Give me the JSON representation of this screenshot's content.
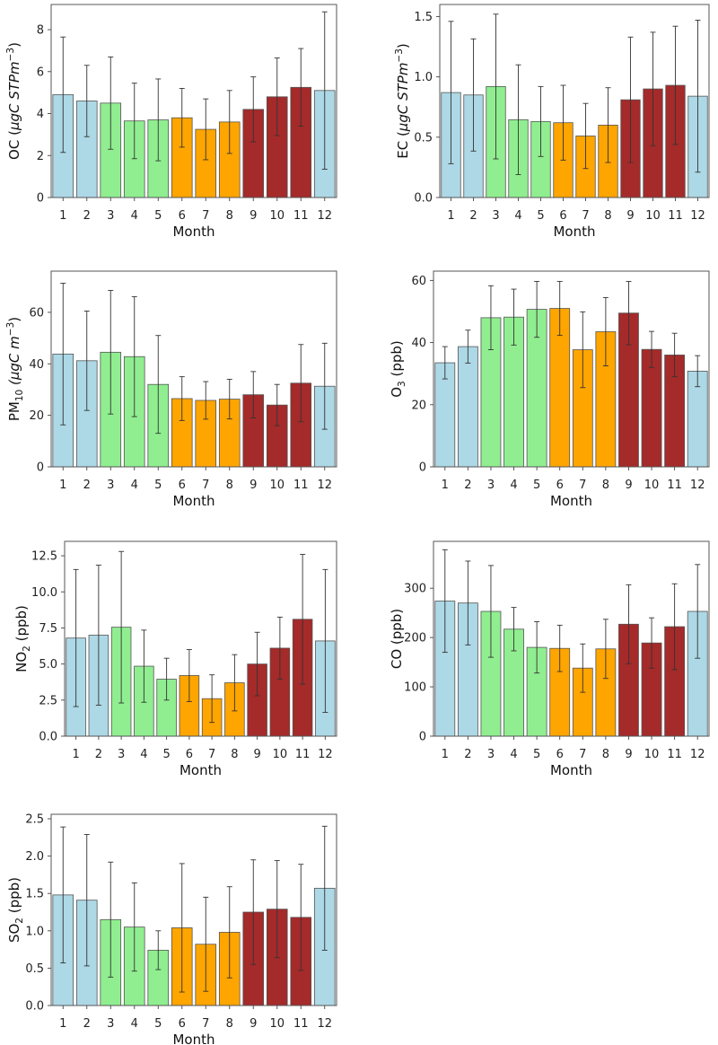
{
  "colors": {
    "winter": "#add8e6",
    "spring": "#90ee90",
    "summer": "#ffa500",
    "autumn": "#a52a2a"
  },
  "chart_data": [
    {
      "type": "bar",
      "title": "",
      "xlabel": "Month",
      "ylabel_main": "OC (",
      "ylabel_sub": "",
      "ylabel_rest": "μgC STPm",
      "ylabel_sup": "−3",
      "ylabel_end": ")",
      "ylabel_text": "OC (μgC STPm−3)",
      "categories": [
        "1",
        "2",
        "3",
        "4",
        "5",
        "6",
        "7",
        "8",
        "9",
        "10",
        "11",
        "12"
      ],
      "seasons": [
        "winter",
        "winter",
        "spring",
        "spring",
        "spring",
        "summer",
        "summer",
        "summer",
        "autumn",
        "autumn",
        "autumn",
        "winter"
      ],
      "values": [
        4.9,
        4.6,
        4.5,
        3.65,
        3.7,
        3.8,
        3.25,
        3.6,
        4.2,
        4.8,
        5.25,
        5.1
      ],
      "errors": [
        2.75,
        1.7,
        2.2,
        1.8,
        1.95,
        1.4,
        1.45,
        1.5,
        1.55,
        1.85,
        1.85,
        3.75
      ],
      "ylim": [
        0,
        9.2
      ],
      "yticks": [
        0,
        2,
        4,
        6,
        8
      ],
      "ytick_labels": [
        "0",
        "2",
        "4",
        "6",
        "8"
      ]
    },
    {
      "type": "bar",
      "title": "",
      "xlabel": "Month",
      "ylabel_main": "EC (",
      "ylabel_sub": "",
      "ylabel_rest": "μgC STPm",
      "ylabel_sup": "−3",
      "ylabel_end": ")",
      "ylabel_text": "EC (μgC STPm−3)",
      "categories": [
        "1",
        "2",
        "3",
        "4",
        "5",
        "6",
        "7",
        "8",
        "9",
        "10",
        "11",
        "12"
      ],
      "seasons": [
        "winter",
        "winter",
        "spring",
        "spring",
        "spring",
        "summer",
        "summer",
        "summer",
        "autumn",
        "autumn",
        "autumn",
        "winter"
      ],
      "values": [
        0.87,
        0.85,
        0.92,
        0.645,
        0.63,
        0.62,
        0.51,
        0.6,
        0.81,
        0.9,
        0.93,
        0.84
      ],
      "errors": [
        0.59,
        0.465,
        0.6,
        0.455,
        0.29,
        0.31,
        0.27,
        0.31,
        0.52,
        0.47,
        0.49,
        0.63
      ],
      "ylim": [
        0,
        1.6
      ],
      "yticks": [
        0,
        0.5,
        1.0,
        1.5
      ],
      "ytick_labels": [
        "0.0",
        "0.5",
        "1.0",
        "1.5"
      ]
    },
    {
      "type": "bar",
      "title": "",
      "xlabel": "Month",
      "ylabel_main": "PM",
      "ylabel_sub": "10",
      "ylabel_rest": " (μgC m",
      "ylabel_sup": "−3",
      "ylabel_end": ")",
      "ylabel_text": "PM10 (μgC m−3)",
      "categories": [
        "1",
        "2",
        "3",
        "4",
        "5",
        "6",
        "7",
        "8",
        "9",
        "10",
        "11",
        "12"
      ],
      "seasons": [
        "winter",
        "winter",
        "spring",
        "spring",
        "spring",
        "summer",
        "summer",
        "summer",
        "autumn",
        "autumn",
        "autumn",
        "winter"
      ],
      "values": [
        43.8,
        41.2,
        44.5,
        42.8,
        32.0,
        26.5,
        25.8,
        26.3,
        28.0,
        24.0,
        32.5,
        31.3
      ],
      "errors": [
        27.5,
        19.3,
        24.0,
        23.3,
        19.0,
        8.5,
        7.3,
        7.7,
        9.0,
        8.0,
        15.0,
        16.7
      ],
      "ylim": [
        0,
        76
      ],
      "yticks": [
        0,
        20,
        40,
        60
      ],
      "ytick_labels": [
        "0",
        "20",
        "40",
        "60"
      ]
    },
    {
      "type": "bar",
      "title": "",
      "xlabel": "Month",
      "ylabel_main": "O",
      "ylabel_sub": "3",
      "ylabel_rest": " (ppb)",
      "ylabel_sup": "",
      "ylabel_end": "",
      "ylabel_text": "O3 (ppb)",
      "categories": [
        "1",
        "2",
        "3",
        "4",
        "5",
        "6",
        "7",
        "8",
        "9",
        "10",
        "11",
        "12"
      ],
      "seasons": [
        "winter",
        "winter",
        "spring",
        "spring",
        "spring",
        "summer",
        "summer",
        "summer",
        "autumn",
        "autumn",
        "autumn",
        "winter"
      ],
      "values": [
        33.5,
        38.7,
        48.0,
        48.2,
        50.7,
        51.0,
        37.7,
        43.5,
        49.5,
        37.8,
        36.0,
        30.8
      ],
      "errors": [
        5.2,
        5.3,
        10.3,
        9.0,
        9.0,
        8.7,
        12.2,
        11.0,
        10.2,
        5.8,
        7.0,
        5.0
      ],
      "ylim": [
        0,
        63
      ],
      "yticks": [
        0,
        20,
        40,
        60
      ],
      "ytick_labels": [
        "0",
        "20",
        "40",
        "60"
      ]
    },
    {
      "type": "bar",
      "title": "",
      "xlabel": "Month",
      "ylabel_main": "NO",
      "ylabel_sub": "2",
      "ylabel_rest": " (ppb)",
      "ylabel_sup": "",
      "ylabel_end": "",
      "ylabel_text": "NO2 (ppb)",
      "categories": [
        "1",
        "2",
        "3",
        "4",
        "5",
        "6",
        "7",
        "8",
        "9",
        "10",
        "11",
        "12"
      ],
      "seasons": [
        "winter",
        "winter",
        "spring",
        "spring",
        "spring",
        "summer",
        "summer",
        "summer",
        "autumn",
        "autumn",
        "autumn",
        "winter"
      ],
      "values": [
        6.8,
        7.0,
        7.55,
        4.85,
        3.95,
        4.2,
        2.6,
        3.7,
        5.0,
        6.1,
        8.1,
        6.6
      ],
      "errors": [
        4.75,
        4.85,
        5.25,
        2.5,
        1.45,
        1.8,
        1.65,
        1.95,
        2.2,
        2.15,
        4.5,
        4.95
      ],
      "ylim": [
        0,
        13.5
      ],
      "yticks": [
        0,
        2.5,
        5.0,
        7.5,
        10.0,
        12.5
      ],
      "ytick_labels": [
        "0.0",
        "2.5",
        "5.0",
        "7.5",
        "10.0",
        "12.5"
      ]
    },
    {
      "type": "bar",
      "title": "",
      "xlabel": "Month",
      "ylabel_main": "CO (ppb)",
      "ylabel_sub": "",
      "ylabel_rest": "",
      "ylabel_sup": "",
      "ylabel_end": "",
      "ylabel_text": "CO (ppb)",
      "categories": [
        "1",
        "2",
        "3",
        "4",
        "5",
        "6",
        "7",
        "8",
        "9",
        "10",
        "11",
        "12"
      ],
      "seasons": [
        "winter",
        "winter",
        "spring",
        "spring",
        "spring",
        "summer",
        "summer",
        "summer",
        "autumn",
        "autumn",
        "autumn",
        "winter"
      ],
      "values": [
        274,
        270,
        253,
        217,
        180,
        178,
        138,
        177,
        227,
        189,
        222,
        253
      ],
      "errors": [
        104,
        85,
        93,
        44,
        52,
        47,
        49,
        60,
        80,
        51,
        87,
        95
      ],
      "ylim": [
        0,
        395
      ],
      "yticks": [
        0,
        100,
        200,
        300
      ],
      "ytick_labels": [
        "0",
        "100",
        "200",
        "300"
      ]
    },
    {
      "type": "bar",
      "title": "",
      "xlabel": "Month",
      "ylabel_main": "SO",
      "ylabel_sub": "2",
      "ylabel_rest": " (ppb)",
      "ylabel_sup": "",
      "ylabel_end": "",
      "ylabel_text": "SO2 (ppb)",
      "categories": [
        "1",
        "2",
        "3",
        "4",
        "5",
        "6",
        "7",
        "8",
        "9",
        "10",
        "11",
        "12"
      ],
      "seasons": [
        "winter",
        "winter",
        "spring",
        "spring",
        "spring",
        "summer",
        "summer",
        "summer",
        "autumn",
        "autumn",
        "autumn",
        "winter"
      ],
      "values": [
        1.48,
        1.41,
        1.15,
        1.05,
        0.74,
        1.04,
        0.82,
        0.98,
        1.25,
        1.29,
        1.18,
        1.57
      ],
      "errors": [
        0.91,
        0.88,
        0.77,
        0.59,
        0.26,
        0.86,
        0.63,
        0.61,
        0.7,
        0.65,
        0.71,
        0.83
      ],
      "ylim": [
        0,
        2.56
      ],
      "yticks": [
        0,
        0.5,
        1.0,
        1.5,
        2.0,
        2.5
      ],
      "ytick_labels": [
        "0.0",
        "0.5",
        "1.0",
        "1.5",
        "2.0",
        "2.5"
      ]
    }
  ]
}
